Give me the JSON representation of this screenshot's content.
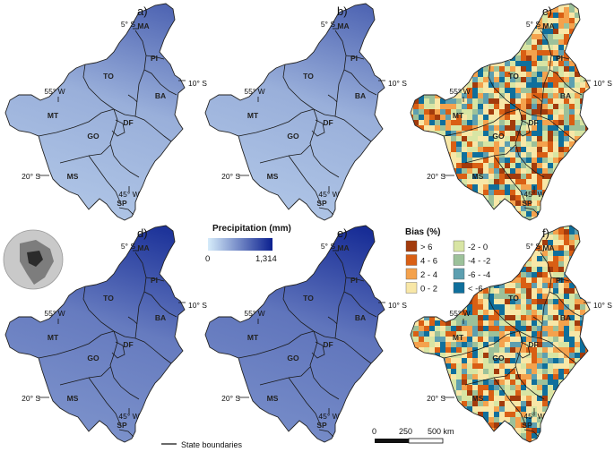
{
  "panels": [
    {
      "label": "a)",
      "kind": "precip",
      "level": 0.3
    },
    {
      "label": "b)",
      "kind": "precip",
      "level": 0.3
    },
    {
      "label": "c)",
      "kind": "bias",
      "bias_style": "mixed"
    },
    {
      "label": "d)",
      "kind": "precip",
      "level": 0.55
    },
    {
      "label": "e)",
      "kind": "precip",
      "level": 0.58
    },
    {
      "label": "f)",
      "kind": "bias",
      "bias_style": "mixed"
    }
  ],
  "states": [
    "MA",
    "PI",
    "TO",
    "BA",
    "MT",
    "GO",
    "DF",
    "MS",
    "SP"
  ],
  "coords": {
    "lat_north": "5° S",
    "lat_mid": "10° S",
    "lat_south": "20° S",
    "lon_west": "55° W",
    "lon_east": "45° W"
  },
  "precip_legend": {
    "title": "Precipitation (mm)",
    "min_label": "0",
    "max_label": "1,314",
    "color_low": "#d6ecfa",
    "color_high": "#0a1f8f"
  },
  "bias_legend": {
    "title": "Bias (%)",
    "classes": [
      {
        "label": "> 6",
        "color": "#a33b0c"
      },
      {
        "label": "4 - 6",
        "color": "#d95f14"
      },
      {
        "label": "2 - 4",
        "color": "#f4a24d"
      },
      {
        "label": "0 - 2",
        "color": "#f8e7a7"
      },
      {
        "label": "-2 - 0",
        "color": "#d8e5a4"
      },
      {
        "label": "-4 - -2",
        "color": "#9cc19a"
      },
      {
        "label": "-6 - -4",
        "color": "#5d9fb0"
      },
      {
        "label": "< -6",
        "color": "#0f6f9c"
      }
    ]
  },
  "boundary_legend": "State boundaries",
  "scalebar": {
    "labels": [
      "0",
      "250",
      "500 km"
    ]
  }
}
